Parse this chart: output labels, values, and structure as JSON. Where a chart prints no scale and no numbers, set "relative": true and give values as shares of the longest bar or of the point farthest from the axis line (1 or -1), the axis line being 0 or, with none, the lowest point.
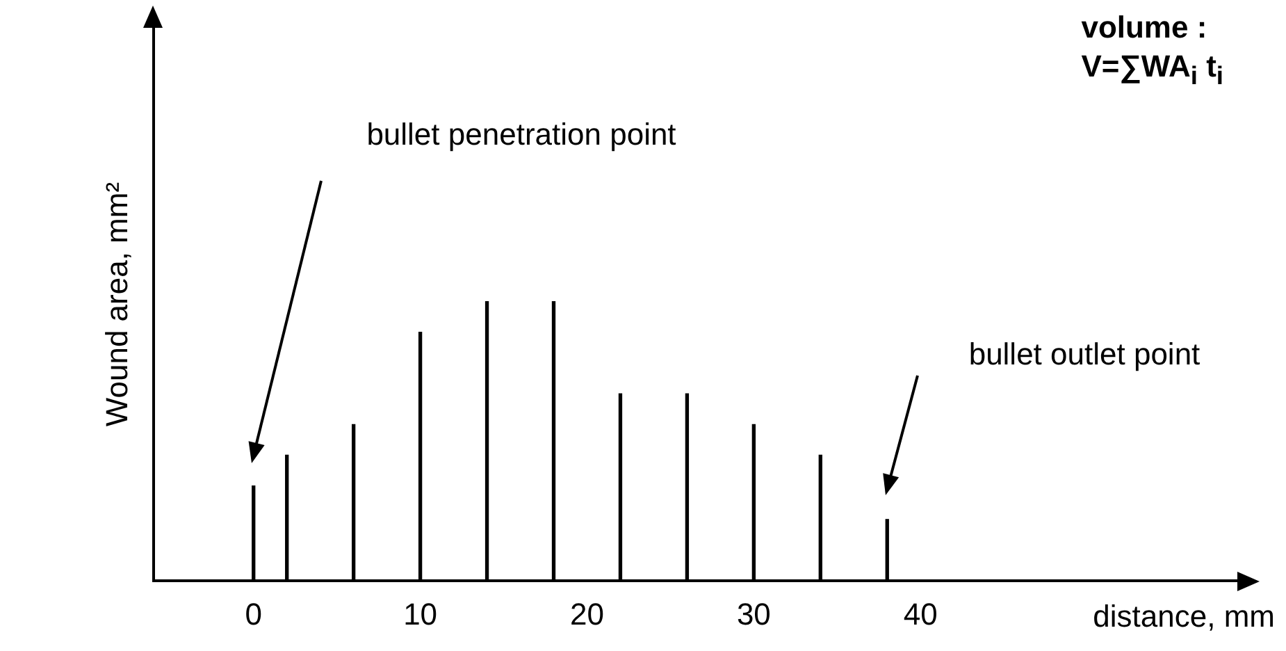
{
  "chart_data": {
    "type": "bar",
    "xlabel": "distance, mm",
    "ylabel": "Wound area, mm²",
    "x": [
      0,
      2,
      6,
      10,
      14,
      18,
      22,
      26,
      30,
      34,
      38
    ],
    "values": [
      0.34,
      0.45,
      0.56,
      0.89,
      1,
      1,
      0.67,
      0.67,
      0.56,
      0.45,
      0.22
    ],
    "color": "#000000",
    "relative": true,
    "grid": false,
    "legend": false,
    "xlim": [
      -6,
      59
    ],
    "xticks": [
      0,
      10,
      20,
      30,
      40
    ],
    "annotations": [
      "bullet penetration point",
      "bullet outlet point",
      "volume :",
      "V=∑WA$_{i}$  t$_{i}$"
    ]
  }
}
